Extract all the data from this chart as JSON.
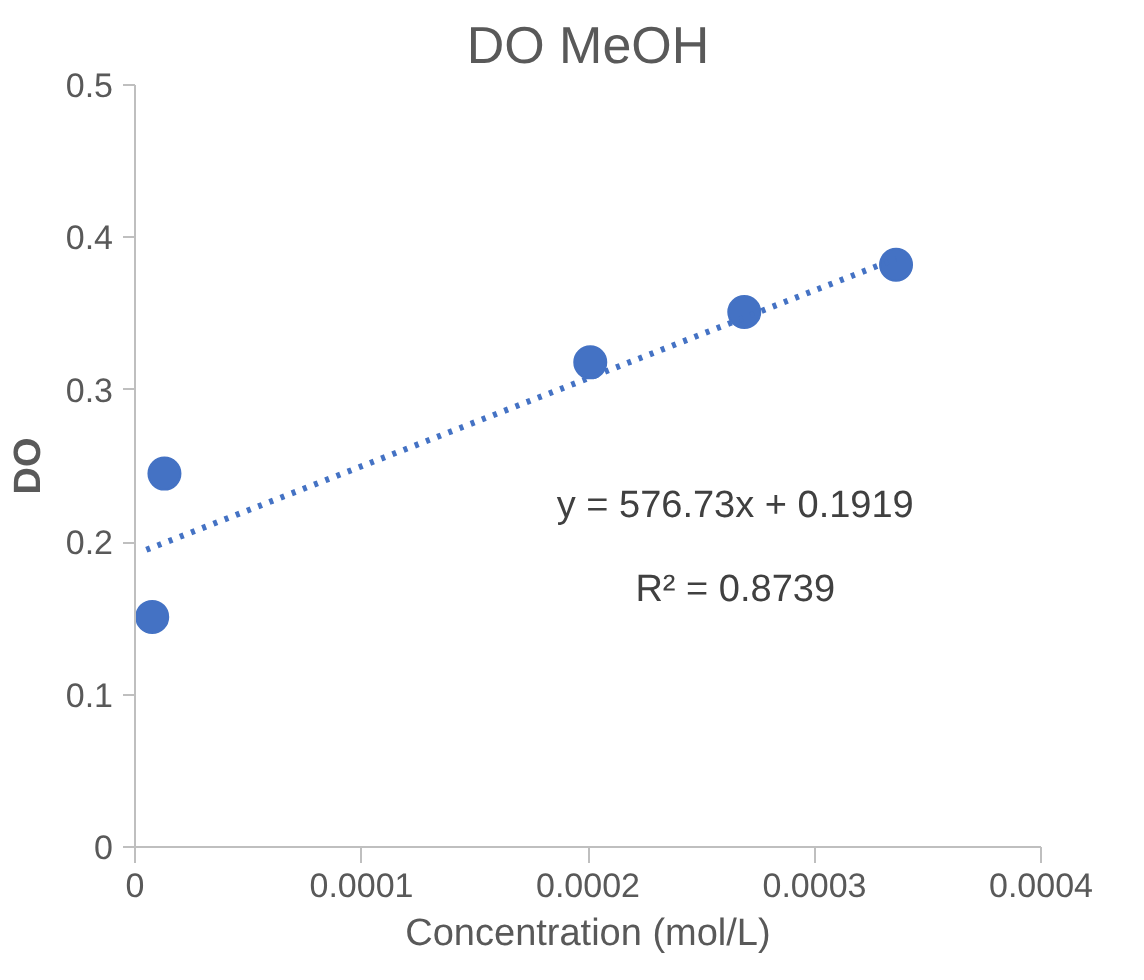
{
  "chart_data": {
    "type": "scatter",
    "title": "DO MeOH",
    "xlabel": "Concentration (mol/L)",
    "ylabel": "DO",
    "x": [
      7.6e-06,
      1.3e-05,
      0.000201,
      0.000269,
      0.000336
    ],
    "series": [
      {
        "color": "#4472c4",
        "values": [
          0.151,
          0.245,
          0.318,
          0.351,
          0.382
        ],
        "marker": "circle"
      },
      {
        "type": "line",
        "color": "#4472c4",
        "line_style": "dotted",
        "x": [
          5e-06,
          0.000336
        ],
        "values": [
          0.195,
          0.386
        ]
      }
    ],
    "annotations": [
      "y = 576.73x + 0.1919",
      "R² = 0.8739"
    ],
    "xlim": [
      0,
      0.0004
    ],
    "xticks": [
      {
        "value": 0,
        "label": "0"
      },
      0.0001,
      0.0002,
      0.0003,
      0.0004
    ],
    "ylim": [
      0,
      0.5
    ],
    "yticks": [
      {
        "value": 0,
        "label": "0"
      },
      0.1,
      0.2,
      0.3,
      0.4,
      0.5
    ],
    "grid": false
  }
}
